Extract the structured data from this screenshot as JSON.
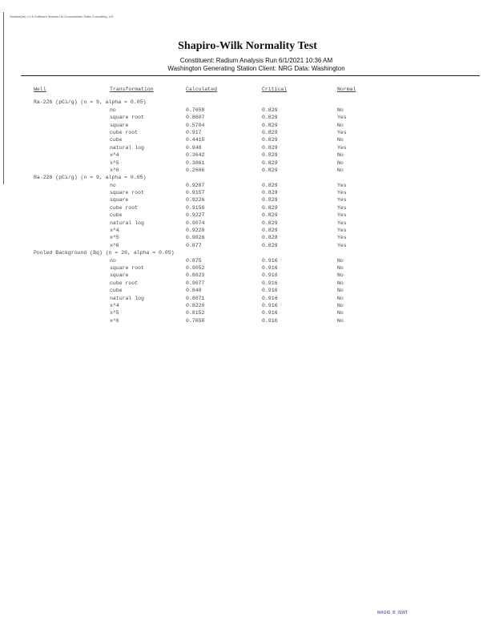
{
  "header": {
    "top_line": "Sanitas(tm) v.9.6 Software licensed to Groundwater Stats Consulting. UG",
    "title": "Shapiro-Wilk Normality Test",
    "subtitle1": "Constituent: Radium   Analysis Run 6/1/2021 10:36 AM",
    "subtitle2": "Washington Generating Station   Client: NRG   Data: Washington"
  },
  "columns": [
    "Well",
    "Transformation",
    "Calculated",
    "Critical",
    "Normal"
  ],
  "groups": [
    {
      "label": "Ra-226 (pCi/g) (n = 9, alpha = 0.05)",
      "rows": [
        [
          "no",
          "0.7658",
          "0.829",
          "No"
        ],
        [
          "square root",
          "0.8607",
          "0.829",
          "Yes"
        ],
        [
          "square",
          "0.5704",
          "0.829",
          "No"
        ],
        [
          "cube root",
          "0.917",
          "0.829",
          "Yes"
        ],
        [
          "cube",
          "0.4415",
          "0.829",
          "No"
        ],
        [
          "natural log",
          "0.948",
          "0.829",
          "Yes"
        ],
        [
          "x^4",
          "0.3642",
          "0.829",
          "No"
        ],
        [
          "x^5",
          "0.3061",
          "0.829",
          "No"
        ],
        [
          "x^6",
          "0.2606",
          "0.829",
          "No"
        ]
      ]
    },
    {
      "label": "Ra-228 (pCi/g) (n = 9, alpha = 0.05)",
      "rows": [
        [
          "no",
          "0.9207",
          "0.829",
          "Yes"
        ],
        [
          "square root",
          "0.9157",
          "0.829",
          "Yes"
        ],
        [
          "square",
          "0.9226",
          "0.829",
          "Yes"
        ],
        [
          "cube root",
          "0.9159",
          "0.829",
          "Yes"
        ],
        [
          "cube",
          "0.9227",
          "0.829",
          "Yes"
        ],
        [
          "natural log",
          "0.9074",
          "0.829",
          "Yes"
        ],
        [
          "x^4",
          "0.9220",
          "0.829",
          "Yes"
        ],
        [
          "x^5",
          "0.9026",
          "0.829",
          "Yes"
        ],
        [
          "x^6",
          "0.877",
          "0.829",
          "Yes"
        ]
      ]
    },
    {
      "label": "Pooled Background (Bq) (n = 26, alpha = 0.05)",
      "rows": [
        [
          "no",
          "0.875",
          "0.916",
          "No"
        ],
        [
          "square root",
          "0.9052",
          "0.916",
          "No"
        ],
        [
          "square",
          "0.8623",
          "0.916",
          "No"
        ],
        [
          "cube root",
          "0.9077",
          "0.916",
          "No"
        ],
        [
          "cube",
          "0.840",
          "0.916",
          "No"
        ],
        [
          "natural log",
          "0.8071",
          "0.916",
          "No"
        ],
        [
          "x^4",
          "0.8220",
          "0.916",
          "No"
        ],
        [
          "x^5",
          "0.8152",
          "0.916",
          "No"
        ],
        [
          "x^6",
          "0.7658",
          "0.916",
          "No"
        ]
      ]
    }
  ],
  "footer": {
    "logo": "MAGIS_B_ISWT"
  }
}
